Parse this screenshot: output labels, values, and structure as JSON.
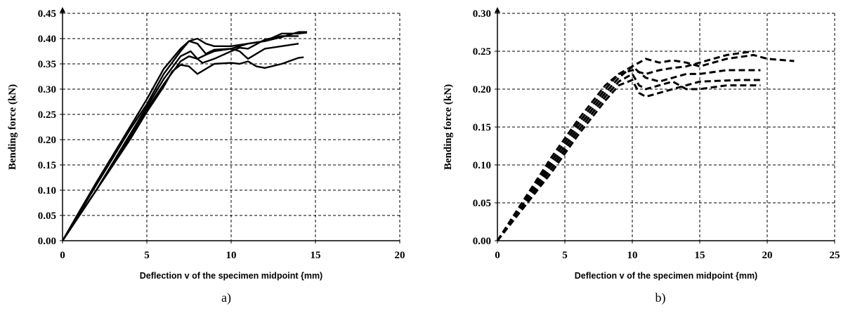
{
  "chart_data": [
    {
      "type": "line",
      "caption": "a)",
      "xlabel": "Deflection v of the specimen  midpoint {mm)",
      "ylabel": "Bending force (kN)",
      "xlim": [
        0,
        20
      ],
      "ylim": [
        0,
        0.45
      ],
      "xticks": [
        "0",
        "5",
        "10",
        "15",
        "20"
      ],
      "yticks": [
        "0.00",
        "0.05",
        "0.10",
        "0.15",
        "0.20",
        "0.25",
        "0.30",
        "0.35",
        "0.40",
        "0.45"
      ],
      "grid": true,
      "line_style": "solid",
      "series": [
        {
          "points": [
            [
              0,
              0
            ],
            [
              1,
              0.055
            ],
            [
              2,
              0.11
            ],
            [
              3,
              0.165
            ],
            [
              4,
              0.22
            ],
            [
              5,
              0.27
            ],
            [
              6,
              0.33
            ],
            [
              7,
              0.375
            ],
            [
              7.5,
              0.395
            ],
            [
              8,
              0.39
            ],
            [
              8.5,
              0.37
            ],
            [
              9,
              0.378
            ],
            [
              10,
              0.38
            ],
            [
              11,
              0.39
            ],
            [
              12,
              0.395
            ],
            [
              13,
              0.403
            ],
            [
              14,
              0.413
            ],
            [
              14.5,
              0.413
            ]
          ]
        },
        {
          "points": [
            [
              0,
              0
            ],
            [
              1,
              0.05
            ],
            [
              2,
              0.1
            ],
            [
              3,
              0.155
            ],
            [
              4,
              0.21
            ],
            [
              5,
              0.265
            ],
            [
              6,
              0.32
            ],
            [
              7,
              0.365
            ],
            [
              7.6,
              0.375
            ],
            [
              8,
              0.36
            ],
            [
              8.3,
              0.352
            ],
            [
              9,
              0.36
            ],
            [
              10,
              0.375
            ],
            [
              10.5,
              0.382
            ],
            [
              11,
              0.38
            ],
            [
              12,
              0.398
            ],
            [
              13,
              0.405
            ],
            [
              14,
              0.405
            ]
          ]
        },
        {
          "points": [
            [
              0,
              0
            ],
            [
              1,
              0.05
            ],
            [
              2,
              0.1
            ],
            [
              3,
              0.15
            ],
            [
              4,
              0.205
            ],
            [
              5,
              0.26
            ],
            [
              6,
              0.31
            ],
            [
              7,
              0.355
            ],
            [
              7.5,
              0.365
            ],
            [
              8,
              0.36
            ],
            [
              8.5,
              0.368
            ],
            [
              9,
              0.375
            ],
            [
              10,
              0.38
            ],
            [
              10.5,
              0.375
            ],
            [
              11,
              0.36
            ],
            [
              12,
              0.38
            ],
            [
              13,
              0.385
            ],
            [
              14,
              0.39
            ]
          ]
        },
        {
          "points": [
            [
              0,
              0
            ],
            [
              1,
              0.05
            ],
            [
              2,
              0.1
            ],
            [
              3,
              0.15
            ],
            [
              4,
              0.2
            ],
            [
              5,
              0.255
            ],
            [
              6,
              0.305
            ],
            [
              6.5,
              0.335
            ],
            [
              7,
              0.348
            ],
            [
              7.5,
              0.345
            ],
            [
              8,
              0.33
            ],
            [
              8.5,
              0.34
            ],
            [
              9,
              0.35
            ],
            [
              10,
              0.352
            ],
            [
              10.5,
              0.35
            ],
            [
              11,
              0.355
            ],
            [
              11.5,
              0.345
            ],
            [
              12,
              0.342
            ],
            [
              13,
              0.35
            ],
            [
              14,
              0.362
            ],
            [
              14.3,
              0.363
            ]
          ]
        },
        {
          "points": [
            [
              0,
              0
            ],
            [
              1,
              0.058
            ],
            [
              2,
              0.115
            ],
            [
              3,
              0.17
            ],
            [
              4,
              0.225
            ],
            [
              5,
              0.28
            ],
            [
              6,
              0.34
            ],
            [
              7,
              0.38
            ],
            [
              7.5,
              0.395
            ],
            [
              8,
              0.4
            ],
            [
              8.5,
              0.39
            ],
            [
              9,
              0.385
            ],
            [
              10,
              0.385
            ],
            [
              11,
              0.39
            ],
            [
              12,
              0.395
            ],
            [
              13,
              0.41
            ],
            [
              14,
              0.41
            ],
            [
              14.5,
              0.412
            ]
          ]
        }
      ]
    },
    {
      "type": "line",
      "caption": "b)",
      "xlabel": "Deflection v of the specimen  midpoint {mm)",
      "ylabel": "Bending force (kN)",
      "xlim": [
        0,
        25
      ],
      "ylim": [
        0,
        0.3
      ],
      "xticks": [
        "0",
        "5",
        "10",
        "15",
        "20",
        "25"
      ],
      "yticks": [
        "0.00",
        "0.05",
        "0.10",
        "0.15",
        "0.20",
        "0.25",
        "0.30"
      ],
      "grid": true,
      "line_style": "dashed",
      "series": [
        {
          "points": [
            [
              0,
              0
            ],
            [
              2,
              0.045
            ],
            [
              4,
              0.09
            ],
            [
              6,
              0.14
            ],
            [
              8,
              0.185
            ],
            [
              9,
              0.205
            ],
            [
              10,
              0.212
            ],
            [
              10.5,
              0.195
            ],
            [
              11,
              0.19
            ],
            [
              12,
              0.195
            ],
            [
              13,
              0.2
            ],
            [
              14,
              0.205
            ],
            [
              15,
              0.21
            ],
            [
              18,
              0.212
            ],
            [
              19.5,
              0.212
            ]
          ]
        },
        {
          "points": [
            [
              0,
              0
            ],
            [
              2,
              0.048
            ],
            [
              4,
              0.095
            ],
            [
              6,
              0.145
            ],
            [
              8,
              0.19
            ],
            [
              9,
              0.21
            ],
            [
              10,
              0.22
            ],
            [
              10.5,
              0.205
            ],
            [
              11,
              0.2
            ],
            [
              12,
              0.205
            ],
            [
              13,
              0.21
            ],
            [
              14,
              0.2
            ],
            [
              15,
              0.2
            ],
            [
              17,
              0.205
            ],
            [
              19.5,
              0.205
            ]
          ]
        },
        {
          "points": [
            [
              0,
              0
            ],
            [
              2,
              0.05
            ],
            [
              4,
              0.1
            ],
            [
              6,
              0.15
            ],
            [
              8,
              0.195
            ],
            [
              9,
              0.215
            ],
            [
              10,
              0.23
            ],
            [
              11,
              0.24
            ],
            [
              12,
              0.235
            ],
            [
              13,
              0.238
            ],
            [
              14,
              0.235
            ],
            [
              15,
              0.23
            ],
            [
              17,
              0.24
            ],
            [
              19,
              0.245
            ],
            [
              20,
              0.24
            ],
            [
              22,
              0.237
            ]
          ]
        },
        {
          "points": [
            [
              0,
              0
            ],
            [
              2,
              0.052
            ],
            [
              4,
              0.105
            ],
            [
              6,
              0.155
            ],
            [
              8,
              0.2
            ],
            [
              9,
              0.22
            ],
            [
              10,
              0.23
            ],
            [
              11,
              0.215
            ],
            [
              12,
              0.21
            ],
            [
              13,
              0.215
            ],
            [
              14,
              0.22
            ],
            [
              15,
              0.22
            ],
            [
              17,
              0.225
            ],
            [
              19.5,
              0.225
            ]
          ]
        },
        {
          "points": [
            [
              0,
              0
            ],
            [
              2,
              0.055
            ],
            [
              4,
              0.11
            ],
            [
              6,
              0.16
            ],
            [
              8,
              0.205
            ],
            [
              9,
              0.22
            ],
            [
              10,
              0.225
            ],
            [
              11,
              0.22
            ],
            [
              12,
              0.225
            ],
            [
              13,
              0.228
            ],
            [
              14,
              0.23
            ],
            [
              15,
              0.235
            ],
            [
              17,
              0.245
            ],
            [
              19,
              0.25
            ]
          ]
        }
      ]
    }
  ]
}
